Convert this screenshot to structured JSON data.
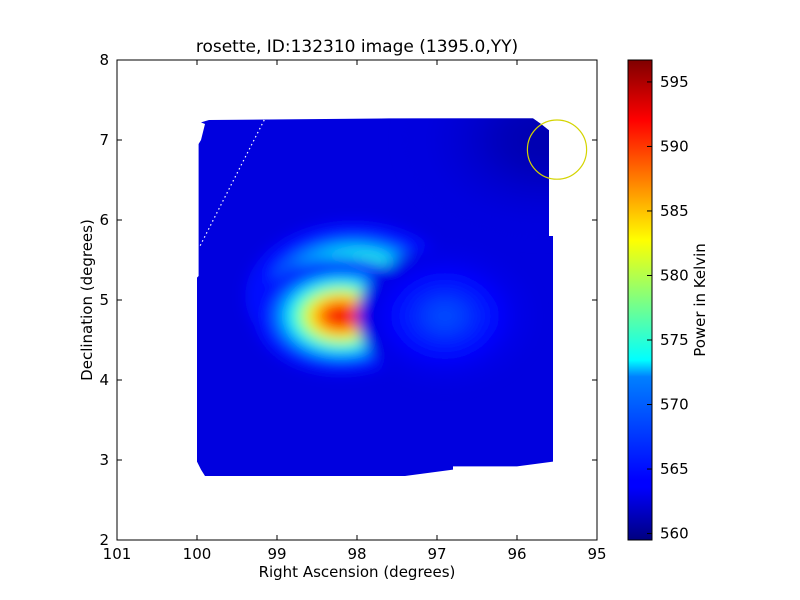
{
  "chart_data": {
    "type": "heatmap",
    "title": "rosette, ID:132310 image (1395.0,YY)",
    "xlabel": "Right Ascension (degrees)",
    "ylabel": "Declination (degrees)",
    "xlim": [
      101,
      95
    ],
    "ylim": [
      2,
      8
    ],
    "xticks": [
      101,
      100,
      99,
      98,
      97,
      96,
      95
    ],
    "yticks": [
      2,
      3,
      4,
      5,
      6,
      7,
      8
    ],
    "grid": false,
    "colormap": "jet",
    "colorbar": {
      "label": "Power in Kelvin",
      "min": 559.5,
      "max": 596.7,
      "ticks": [
        560,
        565,
        570,
        575,
        580,
        585,
        590,
        595
      ]
    },
    "background_level_k": 563,
    "map_outline_radec": [
      [
        99.9,
        7.2
      ],
      [
        99.95,
        7.22
      ],
      [
        99.85,
        7.25
      ],
      [
        97.6,
        7.27
      ],
      [
        95.8,
        7.27
      ],
      [
        95.7,
        7.2
      ],
      [
        95.6,
        7.12
      ],
      [
        95.6,
        5.8
      ],
      [
        95.55,
        5.8
      ],
      [
        95.55,
        2.98
      ],
      [
        96.0,
        2.92
      ],
      [
        96.8,
        2.92
      ],
      [
        96.8,
        2.88
      ],
      [
        97.4,
        2.8
      ],
      [
        98.5,
        2.8
      ],
      [
        99.9,
        2.8
      ],
      [
        99.95,
        2.88
      ],
      [
        100.0,
        2.98
      ],
      [
        100.0,
        5.28
      ],
      [
        99.98,
        5.3
      ],
      [
        99.98,
        6.95
      ],
      [
        99.95,
        7.0
      ]
    ],
    "features": [
      {
        "ra": 98.05,
        "dec": 5.05,
        "peak_k": 596,
        "sigma_ra": 0.55,
        "sigma_dec": 0.38
      },
      {
        "ra": 98.2,
        "dec": 4.8,
        "peak_k": 594,
        "sigma_ra": 0.45,
        "sigma_dec": 0.3
      },
      {
        "ra": 96.9,
        "dec": 4.8,
        "peak_k": 567,
        "sigma_ra": 0.45,
        "sigma_dec": 0.35
      },
      {
        "ra": 95.7,
        "dec": 7.0,
        "peak_k": 561,
        "sigma_ra": 0.7,
        "sigma_dec": 0.5
      }
    ],
    "beam_circle": {
      "ra": 95.5,
      "dec": 6.88,
      "radius_deg": 0.37,
      "color": "#d4d400"
    },
    "dotted_line": {
      "from": [
        99.96,
        5.68
      ],
      "to": [
        99.15,
        7.27
      ],
      "color": "#ffffff"
    }
  }
}
